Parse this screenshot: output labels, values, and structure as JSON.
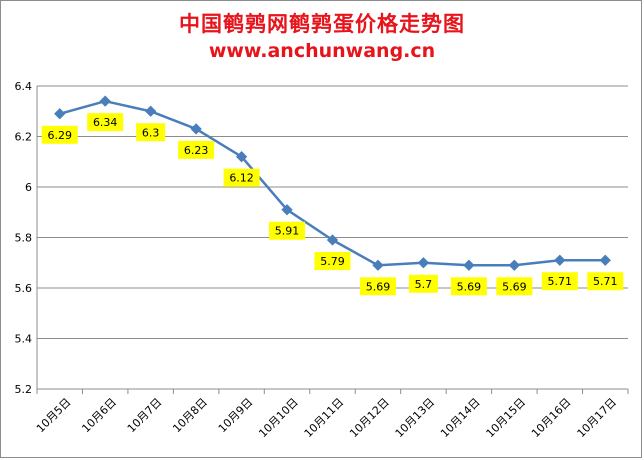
{
  "chart_data": {
    "type": "line",
    "title": "中国鹌鹑网鹌鹑蛋价格走势图",
    "subtitle": "www.anchunwang.cn",
    "categories": [
      "10月5日",
      "10月6日",
      "10月7日",
      "10月8日",
      "10月9日",
      "10月10日",
      "10月11日",
      "10月12日",
      "10月13日",
      "10月14日",
      "10月15日",
      "10月16日",
      "10月17日"
    ],
    "series": [
      {
        "values": [
          6.29,
          6.34,
          6.3,
          6.23,
          6.12,
          5.91,
          5.79,
          5.69,
          5.7,
          5.69,
          5.69,
          5.71,
          5.71
        ]
      }
    ],
    "data_labels": [
      "6.29",
      "6.34",
      "6.3",
      "6.23",
      "6.12",
      "5.91",
      "5.79",
      "5.69",
      "5.7",
      "5.69",
      "5.69",
      "5.71",
      "5.71"
    ],
    "ylim": [
      5.2,
      6.4
    ],
    "yticks": [
      "5.2",
      "5.4",
      "5.6",
      "5.8",
      "6",
      "6.2",
      "6.4"
    ],
    "grid": true,
    "line_color": "#4a7ebb",
    "label_bg_color": "#ffff00",
    "title_color": "#e8141c"
  }
}
